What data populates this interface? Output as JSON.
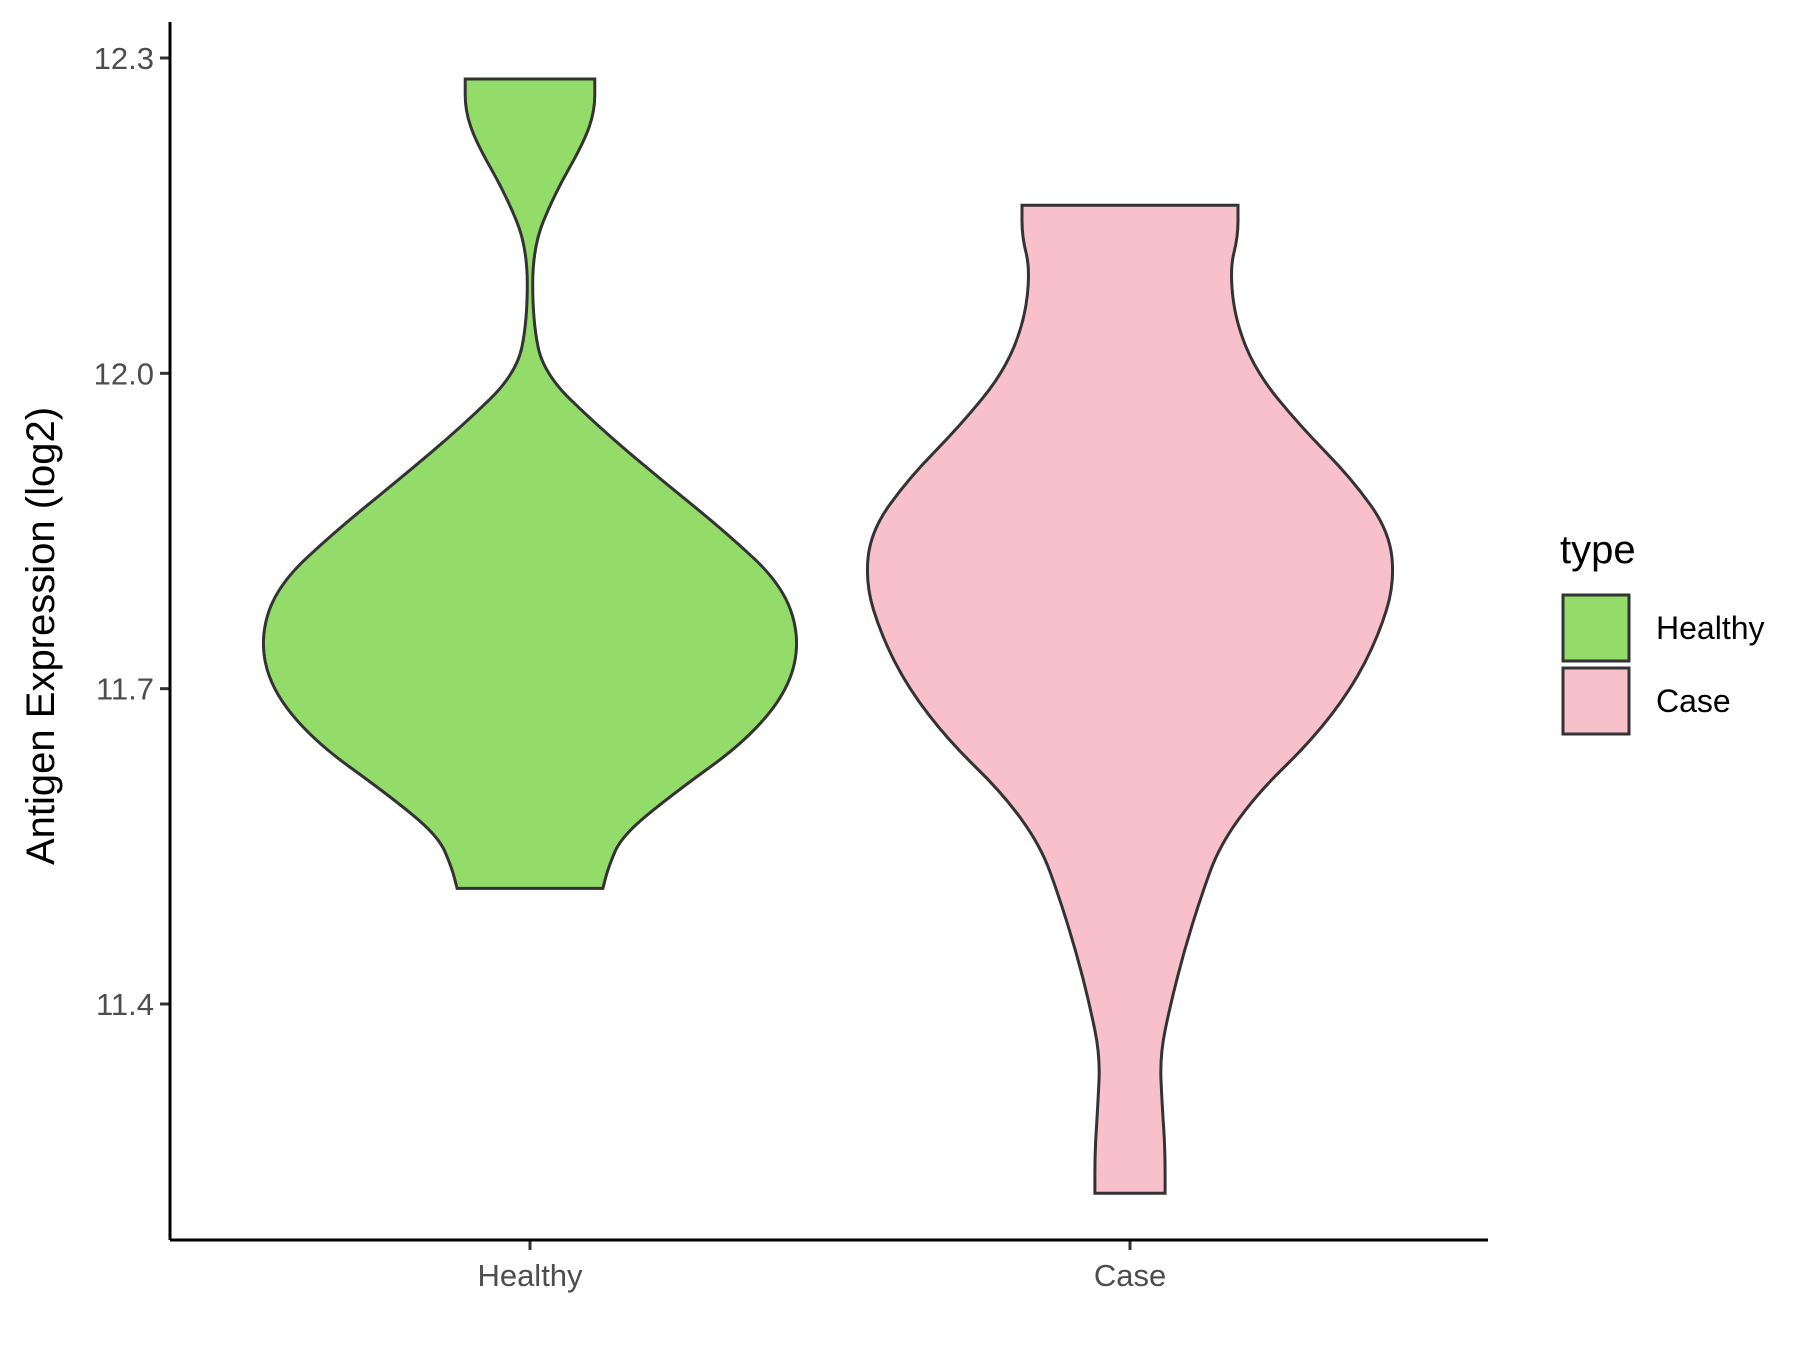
{
  "chart_data": {
    "type": "violin",
    "title": "",
    "xlabel": "",
    "ylabel": "Antigen Expression (log2)",
    "ylim": [
      11.18,
      12.33
    ],
    "yticks": [
      11.4,
      11.7,
      12.0,
      12.3
    ],
    "categories": [
      "Healthy",
      "Case"
    ],
    "grid": false,
    "legend": {
      "title": "type",
      "position": "right",
      "entries": [
        {
          "label": "Healthy",
          "color": "#93dc6a"
        },
        {
          "label": "Case",
          "color": "#f8c0cb"
        }
      ]
    },
    "series": [
      {
        "category": "Healthy",
        "color": "#93dc6a",
        "min": 11.51,
        "max": 12.28,
        "density_profile": [
          {
            "y": 11.51,
            "w": 0.27
          },
          {
            "y": 11.53,
            "w": 0.29
          },
          {
            "y": 11.56,
            "w": 0.34
          },
          {
            "y": 11.6,
            "w": 0.53
          },
          {
            "y": 11.65,
            "w": 0.8
          },
          {
            "y": 11.7,
            "w": 0.96
          },
          {
            "y": 11.75,
            "w": 1.0
          },
          {
            "y": 11.8,
            "w": 0.93
          },
          {
            "y": 11.85,
            "w": 0.72
          },
          {
            "y": 11.9,
            "w": 0.48
          },
          {
            "y": 11.95,
            "w": 0.25
          },
          {
            "y": 12.0,
            "w": 0.05
          },
          {
            "y": 12.05,
            "w": 0.01
          },
          {
            "y": 12.12,
            "w": 0.01
          },
          {
            "y": 12.17,
            "w": 0.09
          },
          {
            "y": 12.22,
            "w": 0.2
          },
          {
            "y": 12.25,
            "w": 0.24
          },
          {
            "y": 12.28,
            "w": 0.24
          }
        ]
      },
      {
        "category": "Case",
        "color": "#f8c0cb",
        "min": 11.22,
        "max": 12.16,
        "density_profile": [
          {
            "y": 11.22,
            "w": 0.13
          },
          {
            "y": 11.26,
            "w": 0.13
          },
          {
            "y": 11.3,
            "w": 0.12
          },
          {
            "y": 11.35,
            "w": 0.11
          },
          {
            "y": 11.4,
            "w": 0.15
          },
          {
            "y": 11.45,
            "w": 0.2
          },
          {
            "y": 11.5,
            "w": 0.26
          },
          {
            "y": 11.55,
            "w": 0.33
          },
          {
            "y": 11.6,
            "w": 0.47
          },
          {
            "y": 11.65,
            "w": 0.67
          },
          {
            "y": 11.7,
            "w": 0.82
          },
          {
            "y": 11.75,
            "w": 0.92
          },
          {
            "y": 11.8,
            "w": 0.98
          },
          {
            "y": 11.85,
            "w": 0.96
          },
          {
            "y": 11.9,
            "w": 0.82
          },
          {
            "y": 11.95,
            "w": 0.63
          },
          {
            "y": 12.0,
            "w": 0.47
          },
          {
            "y": 12.05,
            "w": 0.39
          },
          {
            "y": 12.1,
            "w": 0.37
          },
          {
            "y": 12.13,
            "w": 0.4
          },
          {
            "y": 12.16,
            "w": 0.4
          }
        ]
      }
    ]
  }
}
